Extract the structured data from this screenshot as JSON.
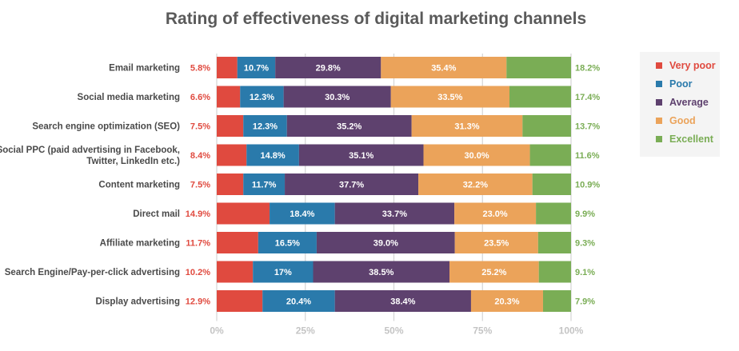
{
  "chart_data": {
    "type": "bar",
    "orientation": "horizontal",
    "stacked": true,
    "title": "Rating of effectiveness of digital marketing channels",
    "categories": [
      [
        "Email marketing"
      ],
      [
        "Social media marketing"
      ],
      [
        "Search engine optimization (SEO)"
      ],
      [
        "Social PPC (paid advertising in Facebook,",
        "Twitter, LinkedIn etc.)"
      ],
      [
        "Content marketing"
      ],
      [
        "Direct mail"
      ],
      [
        "Affiliate marketing"
      ],
      [
        "Search Engine/Pay-per-click advertising"
      ],
      [
        "Display advertising"
      ]
    ],
    "series": [
      {
        "name": "Very poor",
        "color": "#e04a3f",
        "values": [
          5.8,
          6.6,
          7.5,
          8.4,
          7.5,
          14.9,
          11.7,
          10.2,
          12.9
        ],
        "labels": [
          "5.8%",
          "6.6%",
          "7.5%",
          "8.4%",
          "7.5%",
          "14.9%",
          "11.7%",
          "10.2%",
          "12.9%"
        ]
      },
      {
        "name": "Poor",
        "color": "#2a7aab",
        "values": [
          10.7,
          12.3,
          12.3,
          14.8,
          11.7,
          18.4,
          16.5,
          17,
          20.4
        ],
        "labels": [
          "10.7%",
          "12.3%",
          "12.3%",
          "14.8%",
          "11.7%",
          "18.4%",
          "16.5%",
          "17%",
          "20.4%"
        ]
      },
      {
        "name": "Average",
        "color": "#5e416e",
        "values": [
          29.8,
          30.3,
          35.2,
          35.1,
          37.7,
          33.7,
          39.0,
          38.5,
          38.4
        ],
        "labels": [
          "29.8%",
          "30.3%",
          "35.2%",
          "35.1%",
          "37.7%",
          "33.7%",
          "39.0%",
          "38.5%",
          "38.4%"
        ]
      },
      {
        "name": "Good",
        "color": "#eba35a",
        "values": [
          35.4,
          33.5,
          31.3,
          30.0,
          32.2,
          23.0,
          23.5,
          25.2,
          20.3
        ],
        "labels": [
          "35.4%",
          "33.5%",
          "31.3%",
          "30.0%",
          "32.2%",
          "23.0%",
          "23.5%",
          "25.2%",
          "20.3%"
        ]
      },
      {
        "name": "Excellent",
        "color": "#7aad55",
        "values": [
          18.2,
          17.4,
          13.7,
          11.6,
          10.9,
          9.9,
          9.3,
          9.1,
          7.9
        ],
        "labels": [
          "18.2%",
          "17.4%",
          "13.7%",
          "11.6%",
          "10.9%",
          "9.9%",
          "9.3%",
          "9.1%",
          "7.9%"
        ]
      }
    ],
    "xlim": [
      0,
      100
    ],
    "xticks": [
      0,
      25,
      50,
      75,
      100
    ],
    "xtick_labels": [
      "0%",
      "25%",
      "50%",
      "75%",
      "100%"
    ],
    "grid": true,
    "legend_position": "right"
  }
}
